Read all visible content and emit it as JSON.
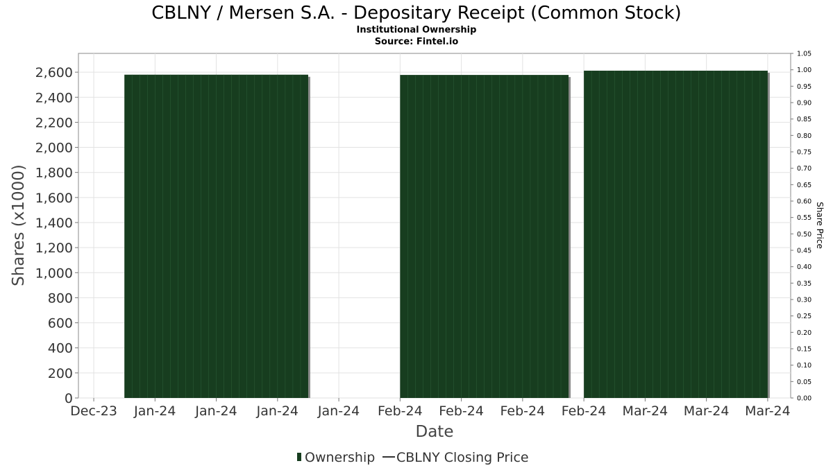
{
  "chart_data": {
    "type": "bar",
    "title": "CBLNY / Mersen S.A. - Depositary Receipt (Common Stock)",
    "subtitle": "Institutional Ownership",
    "source": "Source: Fintel.io",
    "xlabel": "Date",
    "ylabel": "Shares (x1000)",
    "y2label": "Share Price",
    "ylim": [
      0,
      2750
    ],
    "yticks": [
      0,
      200,
      400,
      600,
      800,
      1000,
      1200,
      1400,
      1600,
      1800,
      2000,
      2200,
      2400,
      2600
    ],
    "ytick_labels": [
      "0",
      "200",
      "400",
      "600",
      "800",
      "1,000",
      "1,200",
      "1,400",
      "1,600",
      "1,800",
      "2,000",
      "2,200",
      "2,400",
      "2,600"
    ],
    "y2lim": [
      0,
      1.05
    ],
    "y2ticks": [
      0.0,
      0.05,
      0.1,
      0.15,
      0.2,
      0.25,
      0.3,
      0.35,
      0.4,
      0.45,
      0.5,
      0.55,
      0.6,
      0.65,
      0.7,
      0.75,
      0.8,
      0.85,
      0.9,
      0.95,
      1.0,
      1.05
    ],
    "y2tick_labels": [
      "0.00",
      "0.05",
      "0.10",
      "0.15",
      "0.20",
      "0.25",
      "0.30",
      "0.35",
      "0.40",
      "0.45",
      "0.50",
      "0.55",
      "0.60",
      "0.65",
      "0.70",
      "0.75",
      "0.80",
      "0.85",
      "0.90",
      "0.95",
      "1.00",
      "1.05"
    ],
    "xlim": [
      "2023-12-28",
      "2024-03-30"
    ],
    "xticks": [
      "2023-12-30",
      "2024-01-07",
      "2024-01-15",
      "2024-01-23",
      "2024-01-31",
      "2024-02-08",
      "2024-02-16",
      "2024-02-24",
      "2024-03-03",
      "2024-03-11",
      "2024-03-19",
      "2024-03-27"
    ],
    "xtick_labels": [
      "Dec-23",
      "Jan-24",
      "Jan-24",
      "Jan-24",
      "Jan-24",
      "Feb-24",
      "Feb-24",
      "Feb-24",
      "Feb-24",
      "Mar-24",
      "Mar-24",
      "Mar-24"
    ],
    "series": [
      {
        "name": "Ownership",
        "color": "#173d1f",
        "bars": [
          {
            "start": "2024-01-03",
            "end": "2024-01-27",
            "value": 2580
          },
          {
            "start": "2024-02-08",
            "end": "2024-03-01",
            "value": 2578
          },
          {
            "start": "2024-03-03",
            "end": "2024-03-27",
            "value": 2612
          }
        ]
      },
      {
        "name": "CBLNY Closing Price",
        "color": "#333333",
        "values": []
      }
    ],
    "grid": true,
    "legend": "bottom"
  }
}
